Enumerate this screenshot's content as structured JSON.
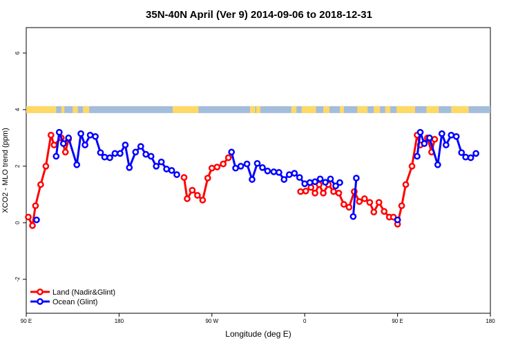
{
  "chart_data": {
    "type": "line",
    "title": "35N-40N April (Ver 9)   2014-09-06 to 2018-12-31",
    "xlabel": "Longitude (deg E)",
    "ylabel": "XCO2 - MLO trend (ppm)",
    "x_axis": {
      "range": [
        90,
        540
      ],
      "ticks": [
        {
          "value": 90,
          "label": "90 E"
        },
        {
          "value": 180,
          "label": "180"
        },
        {
          "value": 270,
          "label": "90 W"
        },
        {
          "value": 360,
          "label": "0"
        },
        {
          "value": 450,
          "label": "90 E"
        },
        {
          "value": 540,
          "label": "180"
        }
      ]
    },
    "y_axis": {
      "range": [
        -3.2,
        6.9
      ],
      "ticks": [
        -2,
        0,
        2,
        4,
        6
      ]
    },
    "land_ocean_band": {
      "y": 4,
      "land_color": "#FFD966",
      "ocean_color": "#A3BDDB",
      "land_segments": [
        [
          90,
          119
        ],
        [
          124,
          127
        ],
        [
          135,
          140
        ],
        [
          145,
          151
        ],
        [
          232,
          257
        ],
        [
          307,
          312
        ],
        [
          313,
          317
        ],
        [
          347,
          352
        ],
        [
          357,
          371
        ],
        [
          378,
          384
        ],
        [
          394,
          398
        ],
        [
          411,
          421
        ],
        [
          427,
          433
        ],
        [
          438,
          443
        ],
        [
          449,
          467
        ],
        [
          478,
          490
        ],
        [
          502,
          519
        ]
      ]
    },
    "legend": {
      "position": "bottom-left",
      "entries": [
        {
          "label": "Land (Nadir&Glint)",
          "color": "#FF0000"
        },
        {
          "label": "Ocean (Glint)",
          "color": "#0000FF"
        }
      ]
    },
    "series": [
      {
        "name": "Land (Nadir&Glint)",
        "color": "#FF0000",
        "segments": [
          [
            [
              92,
              0.2
            ],
            [
              96,
              -0.1
            ],
            [
              99,
              0.6
            ],
            [
              104,
              1.35
            ],
            [
              109,
              2.0
            ],
            [
              114,
              3.1
            ],
            [
              117,
              2.75
            ],
            [
              124,
              3.0
            ],
            [
              128,
              2.5
            ],
            [
              131,
              2.95
            ]
          ],
          [
            [
              243,
              1.6
            ],
            [
              246,
              0.85
            ],
            [
              251,
              1.15
            ],
            [
              256,
              0.97
            ],
            [
              261,
              0.8
            ],
            [
              266,
              1.58
            ],
            [
              270,
              1.93
            ],
            [
              275,
              1.97
            ],
            [
              281,
              2.08
            ],
            [
              286,
              2.3
            ]
          ],
          [
            [
              356,
              1.1
            ],
            [
              361,
              1.12
            ],
            [
              366,
              1.25
            ],
            [
              370,
              1.05
            ],
            [
              374,
              1.35
            ],
            [
              378,
              1.05
            ],
            [
              383,
              1.35
            ],
            [
              388,
              1.1
            ],
            [
              393,
              1.05
            ],
            [
              398,
              0.65
            ],
            [
              403,
              0.55
            ],
            [
              408,
              1.1
            ],
            [
              413,
              0.75
            ],
            [
              418,
              0.85
            ],
            [
              423,
              0.72
            ],
            [
              427,
              0.38
            ],
            [
              432,
              0.72
            ],
            [
              437,
              0.4
            ],
            [
              442,
              0.2
            ],
            [
              446,
              0.2
            ],
            [
              450,
              -0.05
            ],
            [
              454,
              0.6
            ],
            [
              458,
              1.35
            ],
            [
              464,
              2.0
            ],
            [
              469,
              3.1
            ],
            [
              472,
              2.75
            ],
            [
              479,
              3.0
            ],
            [
              483,
              2.5
            ],
            [
              486,
              2.95
            ]
          ]
        ]
      },
      {
        "name": "Ocean (Glint)",
        "color": "#0000FF",
        "segments": [
          [
            [
              100,
              0.1
            ]
          ],
          [
            [
              119,
              2.35
            ],
            [
              122,
              3.2
            ],
            [
              126,
              2.8
            ],
            [
              131,
              3.0
            ],
            [
              139,
              2.05
            ],
            [
              143,
              3.15
            ],
            [
              147,
              2.75
            ],
            [
              152,
              3.1
            ],
            [
              157,
              3.05
            ],
            [
              162,
              2.48
            ],
            [
              166,
              2.32
            ],
            [
              171,
              2.3
            ],
            [
              176,
              2.45
            ],
            [
              181,
              2.45
            ],
            [
              186,
              2.75
            ],
            [
              190,
              1.95
            ],
            [
              196,
              2.5
            ],
            [
              201,
              2.7
            ],
            [
              206,
              2.42
            ],
            [
              211,
              2.35
            ],
            [
              216,
              2.0
            ],
            [
              221,
              2.15
            ],
            [
              226,
              1.9
            ],
            [
              231,
              1.85
            ],
            [
              236,
              1.7
            ]
          ],
          [
            [
              289,
              2.5
            ],
            [
              293,
              1.93
            ],
            [
              298,
              2.0
            ],
            [
              304,
              2.08
            ],
            [
              309,
              1.53
            ],
            [
              314,
              2.1
            ],
            [
              319,
              1.95
            ],
            [
              324,
              1.83
            ],
            [
              330,
              1.8
            ],
            [
              335,
              1.78
            ],
            [
              340,
              1.53
            ],
            [
              345,
              1.7
            ],
            [
              350,
              1.75
            ],
            [
              355,
              1.6
            ],
            [
              360,
              1.38
            ],
            [
              365,
              1.42
            ],
            [
              370,
              1.45
            ],
            [
              375,
              1.55
            ],
            [
              380,
              1.43
            ],
            [
              385,
              1.55
            ],
            [
              390,
              1.3
            ],
            [
              394,
              1.42
            ]
          ],
          [
            [
              407,
              0.22
            ],
            [
              410,
              1.58
            ]
          ],
          [
            [
              450,
              0.1
            ]
          ],
          [
            [
              469,
              2.35
            ],
            [
              472,
              3.2
            ],
            [
              476,
              2.8
            ],
            [
              481,
              3.0
            ],
            [
              489,
              2.05
            ],
            [
              493,
              3.15
            ],
            [
              497,
              2.75
            ],
            [
              502,
              3.1
            ],
            [
              507,
              3.05
            ],
            [
              512,
              2.48
            ],
            [
              516,
              2.32
            ],
            [
              521,
              2.3
            ],
            [
              526,
              2.45
            ]
          ]
        ]
      }
    ]
  }
}
